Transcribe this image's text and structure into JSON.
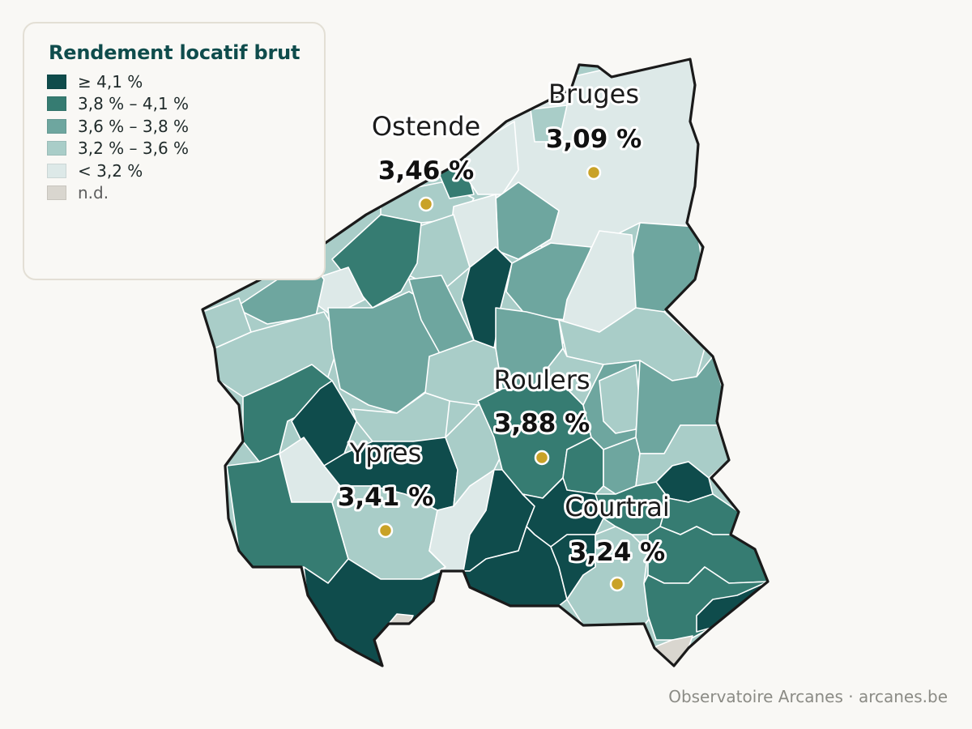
{
  "legend": {
    "title": "Rendement locatif brut",
    "classes": [
      {
        "label": "≥ 4,1 %",
        "color": "#0f4c4c"
      },
      {
        "label": "3,8 % – 4,1 %",
        "color": "#367c72"
      },
      {
        "label": "3,6 % – 3,8 %",
        "color": "#6ea69f"
      },
      {
        "label": "3,2 % – 3,6 %",
        "color": "#a9cdc8"
      },
      {
        "label": "< 3,2 %",
        "color": "#dde9e8"
      },
      {
        "label": "n.d.",
        "color": "#d9d6cf"
      }
    ]
  },
  "cities": [
    {
      "name": "Bruges",
      "value": "3,09 %"
    },
    {
      "name": "Ostende",
      "value": "3,46 %"
    },
    {
      "name": "Roulers",
      "value": "3,88 %"
    },
    {
      "name": "Ypres",
      "value": "3,41 %"
    },
    {
      "name": "Courtrai",
      "value": "3,24 %"
    }
  ],
  "marker_color": "#c9a227",
  "footer": "Observatoire Arcanes · arcanes.be"
}
